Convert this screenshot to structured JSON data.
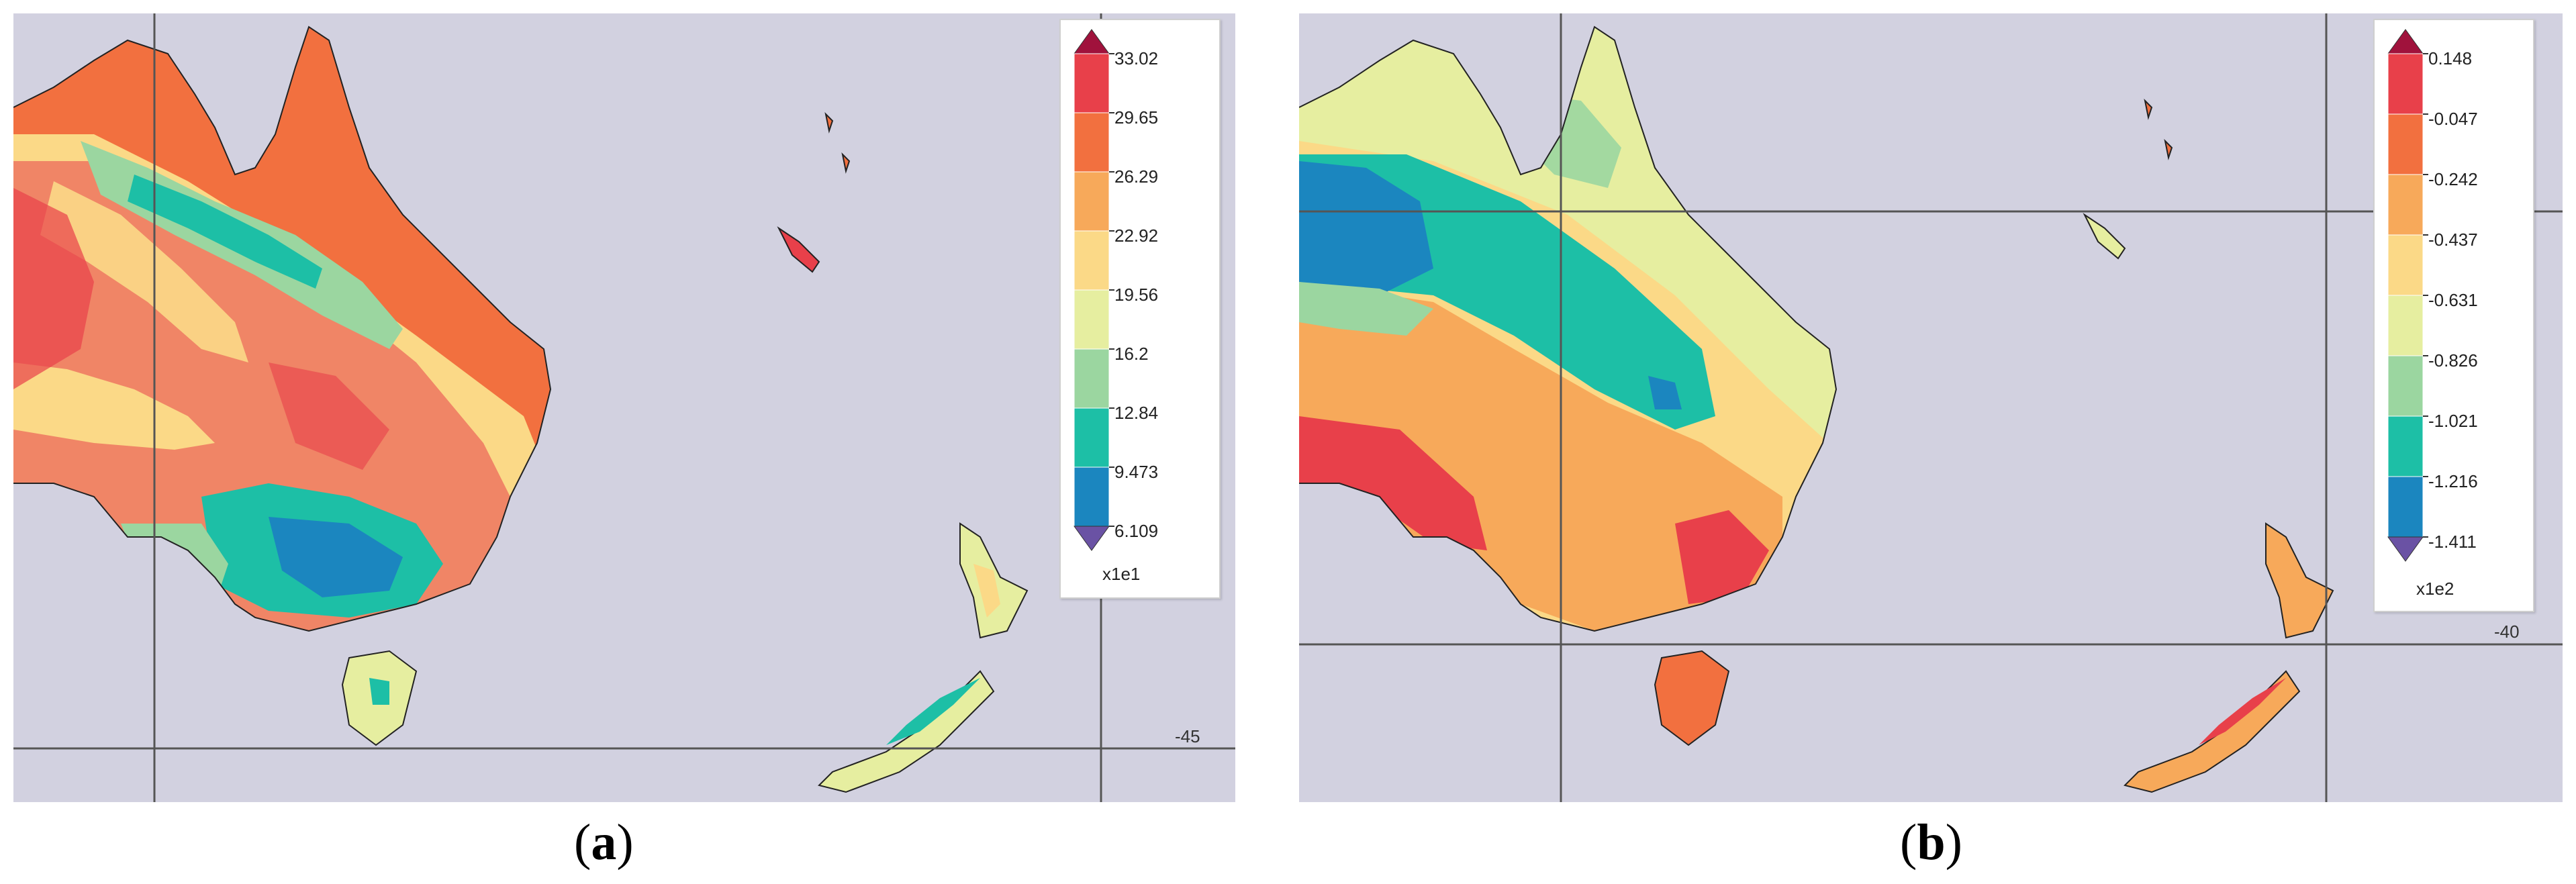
{
  "panels": [
    {
      "caption_letter": "a",
      "latitude_label": "-45",
      "colorbar": {
        "multiplier": "x1e1",
        "ticks": [
          "33.02",
          "29.65",
          "26.29",
          "22.92",
          "19.56",
          "16.2",
          "12.84",
          "9.473",
          "6.109"
        ],
        "colors": [
          "#e8404a",
          "#f2703f",
          "#f7a95a",
          "#fbd987",
          "#e6eea0",
          "#9bd6a0",
          "#1dbfa6",
          "#1b86bf"
        ],
        "over_color": "#a0123c",
        "under_color": "#6a52a4"
      }
    },
    {
      "caption_letter": "b",
      "latitude_label": "-40",
      "colorbar": {
        "multiplier": "x1e2",
        "ticks": [
          "0.148",
          "-0.047",
          "-0.242",
          "-0.437",
          "-0.631",
          "-0.826",
          "-1.021",
          "-1.216",
          "-1.411"
        ],
        "colors": [
          "#e8404a",
          "#f2703f",
          "#f7a95a",
          "#fbd987",
          "#e6eea0",
          "#9bd6a0",
          "#1dbfa6",
          "#1b86bf"
        ],
        "over_color": "#a0123c",
        "under_color": "#6a52a4"
      }
    }
  ]
}
